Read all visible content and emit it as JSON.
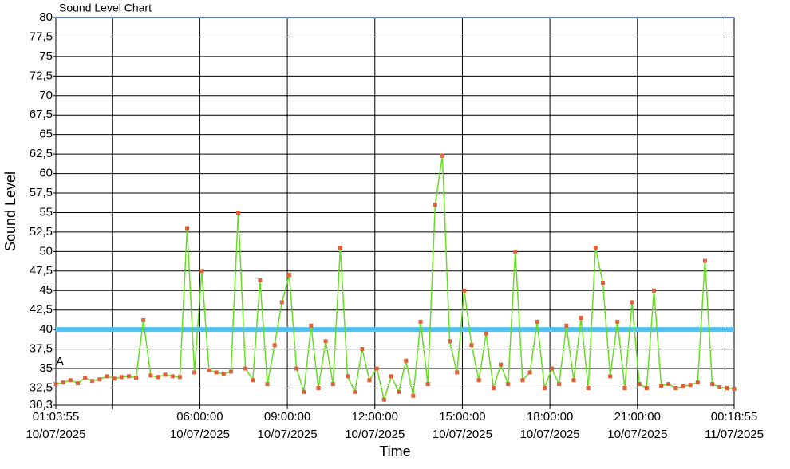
{
  "chart_data": {
    "type": "line",
    "title": "Sound Level Chart",
    "x_label": "Time",
    "y_label": "Sound Level",
    "annotation": "A",
    "ylim": [
      30.3,
      80
    ],
    "yticks": [
      {
        "value": 30.3,
        "label": "30,3"
      },
      {
        "value": 32.5,
        "label": "32,5"
      },
      35,
      {
        "value": 37.5,
        "label": "37,5"
      },
      40,
      {
        "value": 42.5,
        "label": "42,5"
      },
      45,
      {
        "value": 47.5,
        "label": "47,5"
      },
      50,
      {
        "value": 52.5,
        "label": "52,5"
      },
      55,
      {
        "value": 57.5,
        "label": "57,5"
      },
      60,
      {
        "value": 62.5,
        "label": "62,5"
      },
      65,
      {
        "value": 67.5,
        "label": "67,5"
      },
      70,
      {
        "value": 72.5,
        "label": "72,5"
      },
      75,
      {
        "value": 77.5,
        "label": "77,5"
      },
      80
    ],
    "xlim": [
      "2025-07-10 01:03:55",
      "2025-07-11 00:18:55"
    ],
    "xticks": [
      {
        "value": "2025-07-10 01:03:55",
        "label": [
          "01:03:55",
          "10/07/2025"
        ]
      },
      {
        "value": "2025-07-10 03:00:00",
        "label": null
      },
      {
        "value": "2025-07-10 06:00:00",
        "label": [
          "06:00:00",
          "10/07/2025"
        ]
      },
      {
        "value": "2025-07-10 09:00:00",
        "label": [
          "09:00:00",
          "10/07/2025"
        ]
      },
      {
        "value": "2025-07-10 12:00:00",
        "label": [
          "12:00:00",
          "10/07/2025"
        ]
      },
      {
        "value": "2025-07-10 15:00:00",
        "label": [
          "15:00:00",
          "10/07/2025"
        ]
      },
      {
        "value": "2025-07-10 18:00:00",
        "label": [
          "18:00:00",
          "10/07/2025"
        ]
      },
      {
        "value": "2025-07-10 21:00:00",
        "label": [
          "21:00:00",
          "10/07/2025"
        ]
      },
      {
        "value": "2025-07-11 00:00:00",
        "label": null
      },
      {
        "value": "2025-07-11 00:18:55",
        "label": [
          "00:18:55",
          "11/07/2025"
        ]
      }
    ],
    "grid": true,
    "threshold": 40,
    "threshold_color": "#4fc3f7",
    "line_color": "#66dd22",
    "marker_color": "#e0603a",
    "x": [
      "2025-07-10 01:03:55",
      "2025-07-10 01:18:55",
      "2025-07-10 01:33:55",
      "2025-07-10 01:48:55",
      "2025-07-10 02:03:55",
      "2025-07-10 02:18:55",
      "2025-07-10 02:33:55",
      "2025-07-10 02:48:55",
      "2025-07-10 03:03:55",
      "2025-07-10 03:18:55",
      "2025-07-10 03:33:55",
      "2025-07-10 03:48:55",
      "2025-07-10 04:03:55",
      "2025-07-10 04:18:55",
      "2025-07-10 04:33:55",
      "2025-07-10 04:48:55",
      "2025-07-10 05:03:55",
      "2025-07-10 05:18:55",
      "2025-07-10 05:33:55",
      "2025-07-10 05:48:55",
      "2025-07-10 06:03:55",
      "2025-07-10 06:18:55",
      "2025-07-10 06:33:55",
      "2025-07-10 06:48:55",
      "2025-07-10 07:03:55",
      "2025-07-10 07:18:55",
      "2025-07-10 07:33:55",
      "2025-07-10 07:48:55",
      "2025-07-10 08:03:55",
      "2025-07-10 08:18:55",
      "2025-07-10 08:33:55",
      "2025-07-10 08:48:55",
      "2025-07-10 09:03:55",
      "2025-07-10 09:18:55",
      "2025-07-10 09:33:55",
      "2025-07-10 09:48:55",
      "2025-07-10 10:03:55",
      "2025-07-10 10:18:55",
      "2025-07-10 10:33:55",
      "2025-07-10 10:48:55",
      "2025-07-10 11:03:55",
      "2025-07-10 11:18:55",
      "2025-07-10 11:33:55",
      "2025-07-10 11:48:55",
      "2025-07-10 12:03:55",
      "2025-07-10 12:18:55",
      "2025-07-10 12:33:55",
      "2025-07-10 12:48:55",
      "2025-07-10 13:03:55",
      "2025-07-10 13:18:55",
      "2025-07-10 13:33:55",
      "2025-07-10 13:48:55",
      "2025-07-10 14:03:55",
      "2025-07-10 14:18:55",
      "2025-07-10 14:33:55",
      "2025-07-10 14:48:55",
      "2025-07-10 15:03:55",
      "2025-07-10 15:18:55",
      "2025-07-10 15:33:55",
      "2025-07-10 15:48:55",
      "2025-07-10 16:03:55",
      "2025-07-10 16:18:55",
      "2025-07-10 16:33:55",
      "2025-07-10 16:48:55",
      "2025-07-10 17:03:55",
      "2025-07-10 17:18:55",
      "2025-07-10 17:33:55",
      "2025-07-10 17:48:55",
      "2025-07-10 18:03:55",
      "2025-07-10 18:18:55",
      "2025-07-10 18:33:55",
      "2025-07-10 18:48:55",
      "2025-07-10 19:03:55",
      "2025-07-10 19:18:55",
      "2025-07-10 19:33:55",
      "2025-07-10 19:48:55",
      "2025-07-10 20:03:55",
      "2025-07-10 20:18:55",
      "2025-07-10 20:33:55",
      "2025-07-10 20:48:55",
      "2025-07-10 21:03:55",
      "2025-07-10 21:18:55",
      "2025-07-10 21:33:55",
      "2025-07-10 21:48:55",
      "2025-07-10 22:03:55",
      "2025-07-10 22:18:55",
      "2025-07-10 22:33:55",
      "2025-07-10 22:48:55",
      "2025-07-10 23:03:55",
      "2025-07-10 23:18:55",
      "2025-07-10 23:33:55",
      "2025-07-10 23:48:55",
      "2025-07-11 00:03:55",
      "2025-07-11 00:18:55"
    ],
    "values": [
      33.0,
      33.2,
      33.5,
      33.1,
      33.8,
      33.4,
      33.6,
      34.0,
      33.7,
      33.9,
      34.0,
      33.8,
      41.2,
      34.1,
      33.9,
      34.2,
      34.0,
      33.9,
      53.0,
      34.5,
      47.5,
      34.8,
      34.5,
      34.3,
      34.6,
      55.0,
      35.0,
      33.5,
      46.3,
      33.0,
      38.0,
      43.5,
      47.0,
      35.0,
      32.0,
      40.5,
      32.5,
      38.5,
      33.0,
      50.5,
      34.0,
      32.0,
      37.5,
      33.5,
      35.0,
      31.0,
      34.0,
      32.0,
      36.0,
      31.5,
      41.0,
      33.0,
      56.0,
      62.3,
      38.5,
      34.5,
      45.0,
      38.0,
      33.5,
      39.5,
      32.5,
      35.5,
      33.0,
      50.0,
      33.5,
      34.5,
      41.0,
      32.5,
      35.0,
      33.0,
      40.5,
      33.5,
      41.5,
      32.5,
      50.5,
      46.0,
      34.0,
      41.0,
      32.5,
      43.5,
      33.0,
      32.5,
      45.0,
      32.8,
      33.0,
      32.5,
      32.7,
      32.9,
      33.2,
      48.8,
      33.0,
      32.6,
      32.5,
      32.4
    ]
  }
}
